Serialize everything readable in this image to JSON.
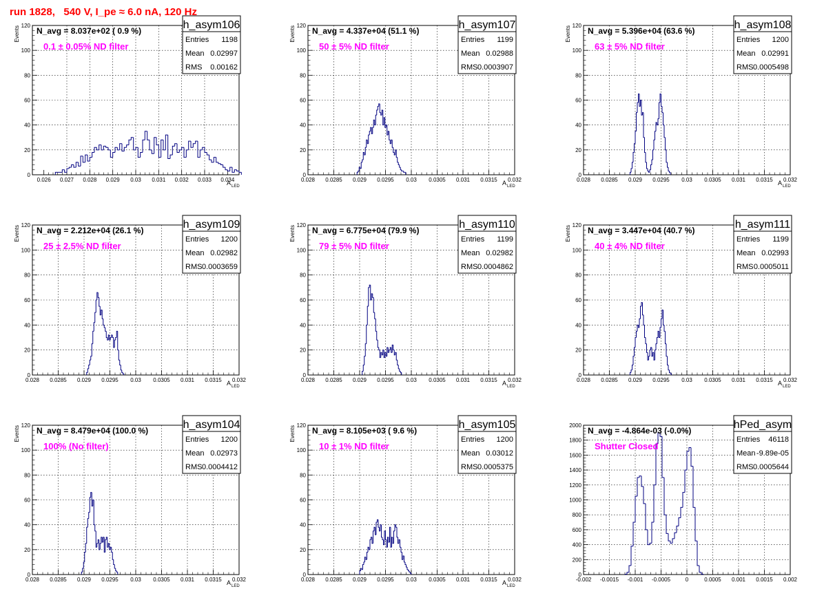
{
  "main_title": "run 1828,   540 V, I_pe ≈ 6.0 nA, 120 Hz",
  "colors": {
    "title": "#ff0000",
    "hist_line": "#000080",
    "annotation": "#ff00ff",
    "grid": "#000000"
  },
  "chart_data": [
    {
      "type": "histogram",
      "name": "h_asym106",
      "nav_text": "N_avg = 8.037e+02 ( 0.9 %)",
      "filter_text": "0.1 ± 0.05% ND filter",
      "stats": [
        [
          "Entries",
          "1198"
        ],
        [
          "Mean",
          "0.02997"
        ],
        [
          "RMS",
          "0.00162"
        ]
      ],
      "ylabel": "Events",
      "xlabel": "A",
      "xlabel_sub": "LED",
      "xlim": [
        0.0255,
        0.0345
      ],
      "ylim": [
        0,
        120
      ],
      "xticks": [
        0.026,
        0.027,
        0.028,
        0.029,
        0.03,
        0.031,
        0.032,
        0.033,
        0.034
      ],
      "xtick_labels": [
        "0.026",
        "0.027",
        "0.028",
        "0.029",
        "0.03",
        "0.031",
        "0.032",
        "0.033",
        "0.034"
      ],
      "yticks": [
        0,
        20,
        40,
        60,
        80,
        100,
        120
      ],
      "ytick_labels": [
        "0",
        "20",
        "40",
        "60",
        "80",
        "100",
        "120"
      ],
      "grid": true,
      "stats_position": "top-right",
      "bin_start": 0.0265,
      "bin_width": 0.0001,
      "values": [
        2,
        2,
        2,
        4,
        2,
        5,
        6,
        8,
        6,
        10,
        7,
        15,
        10,
        16,
        11,
        14,
        18,
        22,
        20,
        24,
        20,
        23,
        22,
        20,
        14,
        18,
        22,
        20,
        25,
        19,
        22,
        24,
        28,
        30,
        20,
        22,
        14,
        18,
        28,
        35,
        28,
        20,
        17,
        30,
        24,
        14,
        28,
        20,
        32,
        13,
        16,
        23,
        25,
        18,
        20,
        22,
        14,
        20,
        27,
        22,
        25,
        27,
        14,
        20,
        22,
        18,
        16,
        12,
        10,
        14,
        10,
        9,
        8,
        6,
        4,
        3,
        6,
        2,
        4,
        3,
        2
      ]
    },
    {
      "type": "histogram",
      "name": "h_asym107",
      "nav_text": "N_avg = 4.337e+04 (51.1 %)",
      "filter_text": "50 ± 5% ND filter",
      "stats": [
        [
          "Entries",
          "1199"
        ],
        [
          "Mean",
          "0.02988"
        ],
        [
          "RMS",
          "0.0003907"
        ]
      ],
      "ylabel": "Events",
      "xlabel": "A",
      "xlabel_sub": "LED",
      "xlim": [
        0.028,
        0.032
      ],
      "ylim": [
        0,
        120
      ],
      "xticks": [
        0.028,
        0.0285,
        0.029,
        0.0295,
        0.03,
        0.0305,
        0.031,
        0.0315,
        0.032
      ],
      "xtick_labels": [
        "0.028",
        "0.0285",
        "0.029",
        "0.0295",
        "0.03",
        "0.0305",
        "0.031",
        "0.0315",
        "0.032"
      ],
      "yticks": [
        0,
        20,
        40,
        60,
        80,
        100,
        120
      ],
      "ytick_labels": [
        "0",
        "20",
        "40",
        "60",
        "80",
        "100",
        "120"
      ],
      "grid": true,
      "stats_position": "top-right",
      "bin_start": 0.02895,
      "bin_width": 2e-05,
      "values": [
        2,
        3,
        6,
        5,
        10,
        12,
        18,
        16,
        22,
        28,
        25,
        32,
        35,
        38,
        33,
        38,
        44,
        40,
        48,
        52,
        55,
        57,
        50,
        48,
        52,
        40,
        46,
        38,
        40,
        32,
        35,
        28,
        25,
        28,
        22,
        18,
        16,
        20,
        14,
        10,
        8,
        6,
        4,
        3,
        3,
        2,
        2
      ]
    },
    {
      "type": "histogram",
      "name": "h_asym108",
      "nav_text": "N_avg = 5.396e+04 (63.6 %)",
      "filter_text": "63 ± 5% ND filter",
      "stats": [
        [
          "Entries",
          "1200"
        ],
        [
          "Mean",
          "0.02991"
        ],
        [
          "RMS",
          "0.0005498"
        ]
      ],
      "ylabel": "Events",
      "xlabel": "A",
      "xlabel_sub": "LED",
      "xlim": [
        0.028,
        0.032
      ],
      "ylim": [
        0,
        120
      ],
      "xticks": [
        0.028,
        0.0285,
        0.029,
        0.0295,
        0.03,
        0.0305,
        0.031,
        0.0315,
        0.032
      ],
      "xtick_labels": [
        "0.028",
        "0.0285",
        "0.029",
        "0.0295",
        "0.03",
        "0.0305",
        "0.031",
        "0.0315",
        "0.032"
      ],
      "yticks": [
        0,
        20,
        40,
        60,
        80,
        100,
        120
      ],
      "ytick_labels": [
        "0",
        "20",
        "40",
        "60",
        "80",
        "100",
        "120"
      ],
      "grid": true,
      "stats_position": "top-right",
      "bin_start": 0.0289,
      "bin_width": 2e-05,
      "values": [
        2,
        5,
        10,
        18,
        25,
        35,
        50,
        58,
        65,
        55,
        60,
        48,
        50,
        30,
        18,
        10,
        5,
        3,
        2,
        4,
        8,
        12,
        20,
        28,
        35,
        42,
        40,
        45,
        58,
        65,
        55,
        50,
        40,
        30,
        20,
        10,
        6,
        3,
        2
      ]
    },
    {
      "type": "histogram",
      "name": "h_asym109",
      "nav_text": "N_avg = 2.212e+04 (26.1 %)",
      "filter_text": "25 ± 2.5% ND filter",
      "stats": [
        [
          "Entries",
          "1200"
        ],
        [
          "Mean",
          "0.02982"
        ],
        [
          "RMS",
          "0.0003659"
        ]
      ],
      "ylabel": "Events",
      "xlabel": "A",
      "xlabel_sub": "LED",
      "xlim": [
        0.028,
        0.032
      ],
      "ylim": [
        0,
        120
      ],
      "xticks": [
        0.028,
        0.0285,
        0.029,
        0.0295,
        0.03,
        0.0305,
        0.031,
        0.0315,
        0.032
      ],
      "xtick_labels": [
        "0.028",
        "0.0285",
        "0.029",
        "0.0295",
        "0.03",
        "0.0305",
        "0.031",
        "0.0315",
        "0.032"
      ],
      "yticks": [
        0,
        20,
        40,
        60,
        80,
        100,
        120
      ],
      "ytick_labels": [
        "0",
        "20",
        "40",
        "60",
        "80",
        "100",
        "120"
      ],
      "grid": true,
      "stats_position": "top-right",
      "bin_start": 0.02905,
      "bin_width": 2e-05,
      "values": [
        2,
        5,
        8,
        12,
        15,
        25,
        35,
        42,
        50,
        60,
        66,
        62,
        55,
        48,
        52,
        45,
        40,
        38,
        35,
        30,
        28,
        32,
        28,
        30,
        32,
        30,
        22,
        28,
        30,
        35,
        20,
        12,
        8,
        4,
        2,
        1
      ]
    },
    {
      "type": "histogram",
      "name": "h_asym110",
      "nav_text": "N_avg = 6.775e+04 (79.9 %)",
      "filter_text": "79 ± 5% ND filter",
      "stats": [
        [
          "Entries",
          "1199"
        ],
        [
          "Mean",
          "0.02982"
        ],
        [
          "RMS",
          "0.0004862"
        ]
      ],
      "ylabel": "Events",
      "xlabel": "A",
      "xlabel_sub": "LED",
      "xlim": [
        0.028,
        0.032
      ],
      "ylim": [
        0,
        120
      ],
      "xticks": [
        0.028,
        0.0285,
        0.029,
        0.0295,
        0.03,
        0.0305,
        0.031,
        0.0315,
        0.032
      ],
      "xtick_labels": [
        "0.028",
        "0.0285",
        "0.029",
        "0.0295",
        "0.03",
        "0.0305",
        "0.031",
        "0.0315",
        "0.032"
      ],
      "yticks": [
        0,
        20,
        40,
        60,
        80,
        100,
        120
      ],
      "ytick_labels": [
        "0",
        "20",
        "40",
        "60",
        "80",
        "100",
        "120"
      ],
      "grid": true,
      "stats_position": "top-right",
      "bin_start": 0.02905,
      "bin_width": 2e-05,
      "values": [
        3,
        8,
        15,
        25,
        40,
        55,
        70,
        72,
        60,
        65,
        62,
        50,
        45,
        35,
        28,
        22,
        20,
        14,
        18,
        16,
        20,
        14,
        18,
        15,
        22,
        18,
        20,
        22,
        18,
        24,
        20,
        16,
        18,
        12,
        8,
        5,
        3,
        2
      ]
    },
    {
      "type": "histogram",
      "name": "h_asym111",
      "nav_text": "N_avg = 3.447e+04 (40.7 %)",
      "filter_text": "40 ± 4% ND filter",
      "stats": [
        [
          "Entries",
          "1199"
        ],
        [
          "Mean",
          "0.02993"
        ],
        [
          "RMS",
          "0.0005011"
        ]
      ],
      "ylabel": "Events",
      "xlabel": "A",
      "xlabel_sub": "LED",
      "xlim": [
        0.028,
        0.032
      ],
      "ylim": [
        0,
        120
      ],
      "xticks": [
        0.028,
        0.0285,
        0.029,
        0.0295,
        0.03,
        0.0305,
        0.031,
        0.0315,
        0.032
      ],
      "xtick_labels": [
        "0.028",
        "0.0285",
        "0.029",
        "0.0295",
        "0.03",
        "0.0305",
        "0.031",
        "0.0315",
        "0.032"
      ],
      "yticks": [
        0,
        20,
        40,
        60,
        80,
        100,
        120
      ],
      "ytick_labels": [
        "0",
        "20",
        "40",
        "60",
        "80",
        "100",
        "120"
      ],
      "grid": true,
      "stats_position": "top-right",
      "bin_start": 0.0289,
      "bin_width": 2e-05,
      "values": [
        2,
        4,
        8,
        15,
        22,
        30,
        35,
        40,
        38,
        45,
        55,
        58,
        48,
        40,
        30,
        25,
        18,
        12,
        15,
        20,
        22,
        15,
        18,
        12,
        20,
        25,
        30,
        35,
        30,
        38,
        45,
        52,
        40,
        35,
        25,
        15,
        8,
        4,
        2,
        1
      ]
    },
    {
      "type": "histogram",
      "name": "h_asym104",
      "nav_text": "N_avg = 8.479e+04 (100.0 %)",
      "filter_text": "100% (No filter)",
      "stats": [
        [
          "Entries",
          "1200"
        ],
        [
          "Mean",
          "0.02973"
        ],
        [
          "RMS",
          "0.0004412"
        ]
      ],
      "ylabel": "Events",
      "xlabel": "A",
      "xlabel_sub": "LED",
      "xlim": [
        0.028,
        0.032
      ],
      "ylim": [
        0,
        120
      ],
      "xticks": [
        0.028,
        0.0285,
        0.029,
        0.0295,
        0.03,
        0.0305,
        0.031,
        0.0315,
        0.032
      ],
      "xtick_labels": [
        "0.028",
        "0.0285",
        "0.029",
        "0.0295",
        "0.03",
        "0.0305",
        "0.031",
        "0.0315",
        "0.032"
      ],
      "yticks": [
        0,
        20,
        40,
        60,
        80,
        100,
        120
      ],
      "ytick_labels": [
        "0",
        "20",
        "40",
        "60",
        "80",
        "100",
        "120"
      ],
      "grid": true,
      "stats_position": "top-right",
      "bin_start": 0.02895,
      "bin_width": 2e-05,
      "values": [
        2,
        5,
        10,
        18,
        25,
        38,
        45,
        50,
        62,
        66,
        55,
        60,
        40,
        35,
        22,
        25,
        28,
        20,
        25,
        30,
        26,
        30,
        18,
        28,
        30,
        22,
        25,
        20,
        22,
        18,
        12,
        8,
        5,
        3,
        2
      ]
    },
    {
      "type": "histogram",
      "name": "h_asym105",
      "nav_text": "N_avg = 8.105e+03 ( 9.6 %)",
      "filter_text": "10 ± 1% ND filter",
      "stats": [
        [
          "Entries",
          "1200"
        ],
        [
          "Mean",
          "0.03012"
        ],
        [
          "RMS",
          "0.0005375"
        ]
      ],
      "ylabel": "Events",
      "xlabel": "A",
      "xlabel_sub": "LED",
      "xlim": [
        0.028,
        0.032
      ],
      "ylim": [
        0,
        120
      ],
      "xticks": [
        0.028,
        0.0285,
        0.029,
        0.0295,
        0.03,
        0.0305,
        0.031,
        0.0315,
        0.032
      ],
      "xtick_labels": [
        "0.028",
        "0.0285",
        "0.029",
        "0.0295",
        "0.03",
        "0.0305",
        "0.031",
        "0.0315",
        "0.032"
      ],
      "yticks": [
        0,
        20,
        40,
        60,
        80,
        100,
        120
      ],
      "ytick_labels": [
        "0",
        "20",
        "40",
        "60",
        "80",
        "100",
        "120"
      ],
      "grid": true,
      "stats_position": "top-right",
      "bin_start": 0.029,
      "bin_width": 2e-05,
      "values": [
        3,
        5,
        4,
        8,
        10,
        14,
        12,
        18,
        22,
        20,
        28,
        30,
        25,
        35,
        38,
        32,
        42,
        44,
        38,
        35,
        40,
        30,
        28,
        24,
        35,
        28,
        22,
        30,
        26,
        38,
        22,
        30,
        25,
        35,
        40,
        38,
        30,
        25,
        28,
        22,
        18,
        12,
        15,
        10,
        8,
        6,
        4,
        3,
        2,
        1
      ]
    },
    {
      "type": "histogram",
      "name": "hPed_asym",
      "nav_text": "N_avg = -4.864e-03 (-0.0%)",
      "filter_text": "Shutter Closed",
      "stats": [
        [
          "Entries",
          "46118"
        ],
        [
          "Mean",
          "-9.89e-05"
        ],
        [
          "RMS",
          "0.0005644"
        ]
      ],
      "ylabel": "",
      "xlabel": "",
      "xlabel_sub": "",
      "xlim": [
        -0.002,
        0.002
      ],
      "ylim": [
        0,
        2000
      ],
      "xticks": [
        -0.002,
        -0.0015,
        -0.001,
        -0.0005,
        0,
        0.0005,
        0.001,
        0.0015,
        0.002
      ],
      "xtick_labels": [
        "-0.002",
        "-0.0015",
        "-0.001",
        "-0.0005",
        "0",
        "0.0005",
        "0.001",
        "0.0015",
        "0.002"
      ],
      "yticks": [
        0,
        200,
        400,
        600,
        800,
        1000,
        1200,
        1400,
        1600,
        1800,
        2000
      ],
      "ytick_labels": [
        "0",
        "200",
        "400",
        "600",
        "800",
        "1000",
        "1200",
        "1400",
        "1600",
        "1800",
        "2000"
      ],
      "grid": true,
      "stats_position": "top-right",
      "bin_start": -0.0012,
      "bin_width": 4e-05,
      "values": [
        5,
        30,
        120,
        380,
        700,
        1050,
        1300,
        1320,
        1180,
        950,
        600,
        400,
        420,
        700,
        1200,
        1750,
        1900,
        1850,
        1300,
        800,
        550,
        450,
        420,
        480,
        560,
        650,
        760,
        900,
        1100,
        1400,
        1650,
        1700,
        1450,
        900,
        450,
        120,
        30,
        5
      ]
    }
  ]
}
